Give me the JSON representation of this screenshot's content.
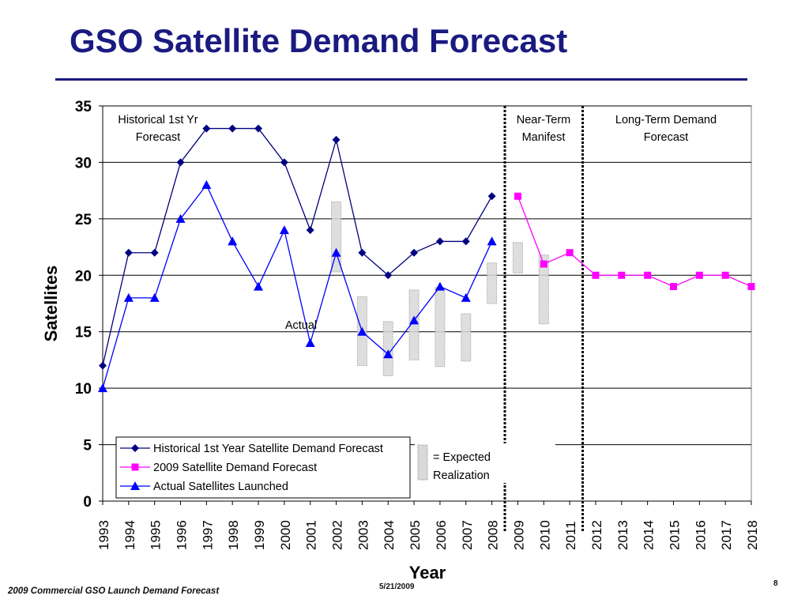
{
  "slide": {
    "title": "GSO Satellite Demand Forecast",
    "footer_left": "2009 Commercial GSO Launch Demand Forecast",
    "footer_date": "5/21/2009",
    "page_number": "8"
  },
  "chart_data": {
    "type": "line",
    "title": "",
    "xlabel": "Year",
    "ylabel": "Satellites",
    "ylim": [
      0,
      35
    ],
    "yticks": [
      0,
      5,
      10,
      15,
      20,
      25,
      30,
      35
    ],
    "grid": true,
    "legend_position": "bottom-left",
    "categories": [
      "1993",
      "1994",
      "1995",
      "1996",
      "1997",
      "1998",
      "1999",
      "2000",
      "2001",
      "2002",
      "2003",
      "2004",
      "2005",
      "2006",
      "2007",
      "2008",
      "2009",
      "2010",
      "2011",
      "2012",
      "2013",
      "2014",
      "2015",
      "2016",
      "2017",
      "2018"
    ],
    "series": [
      {
        "name": "Historical 1st Year Satellite Demand Forecast",
        "color": "#000080",
        "marker": "diamond",
        "x": [
          "1993",
          "1994",
          "1995",
          "1996",
          "1997",
          "1998",
          "1999",
          "2000",
          "2001",
          "2002",
          "2003",
          "2004",
          "2005",
          "2006",
          "2007",
          "2008"
        ],
        "values": [
          12,
          22,
          22,
          30,
          33,
          33,
          33,
          30,
          24,
          32,
          22,
          20,
          22,
          23,
          23,
          27
        ]
      },
      {
        "name": "2009 Satellite Demand Forecast",
        "color": "#ff00ff",
        "marker": "square",
        "x": [
          "2009",
          "2010",
          "2011",
          "2012",
          "2013",
          "2014",
          "2015",
          "2016",
          "2017",
          "2018"
        ],
        "values": [
          27,
          21,
          22,
          20,
          20,
          20,
          19,
          20,
          20,
          19
        ]
      },
      {
        "name": "Actual Satellites Launched",
        "color": "#0000ff",
        "marker": "triangle",
        "x": [
          "1993",
          "1994",
          "1995",
          "1996",
          "1997",
          "1998",
          "1999",
          "2000",
          "2001",
          "2002",
          "2003",
          "2004",
          "2005",
          "2006",
          "2007",
          "2008"
        ],
        "values": [
          10,
          18,
          18,
          25,
          28,
          23,
          19,
          24,
          14,
          22,
          15,
          13,
          16,
          19,
          18,
          23
        ]
      }
    ],
    "expected_realization_ranges": [
      {
        "x": "2002",
        "low": 20.3,
        "high": 26.5
      },
      {
        "x": "2003",
        "low": 12.0,
        "high": 18.1
      },
      {
        "x": "2004",
        "low": 11.1,
        "high": 15.9
      },
      {
        "x": "2005",
        "low": 12.5,
        "high": 18.7
      },
      {
        "x": "2006",
        "low": 11.9,
        "high": 18.9
      },
      {
        "x": "2007",
        "low": 12.4,
        "high": 16.6
      },
      {
        "x": "2008",
        "low": 17.5,
        "high": 21.1
      },
      {
        "x": "2009",
        "low": 20.2,
        "high": 22.9
      },
      {
        "x": "2010",
        "low": 15.7,
        "high": 21.8
      }
    ],
    "region_dividers": [
      "2008-2009",
      "2011-2012"
    ],
    "region_labels": [
      {
        "line1": "Historical 1st Yr",
        "line2": "Forecast"
      },
      {
        "line1": "Near-Term",
        "line2": "Manifest"
      },
      {
        "line1": "Long-Term Demand",
        "line2": "Forecast"
      }
    ],
    "annotations": {
      "actual_label": "Actual",
      "expected_line1": "= Expected",
      "expected_line2": "Realization"
    }
  }
}
